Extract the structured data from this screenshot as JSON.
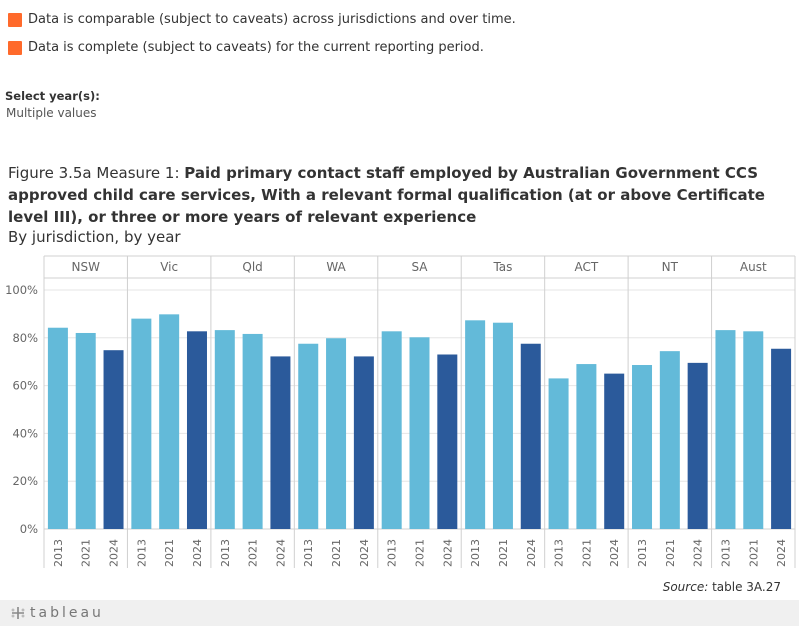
{
  "legend": {
    "items": [
      {
        "label": "Data is comparable (subject to caveats) across jurisdictions and over time.",
        "color": "#FF6A2B"
      },
      {
        "label": "Data is complete (subject to caveats) for the current reporting period.",
        "color": "#FF6A2B"
      }
    ]
  },
  "filter": {
    "label": "Select year(s):",
    "value": "Multiple values"
  },
  "figure": {
    "title_prefix": "Figure 3.5a Measure 1: ",
    "title_bold": "Paid primary contact staff employed by Australian Government CCS approved child care services, With a relevant formal qualification (at or above Certificate level III), or three or more years of relevant experience",
    "subtitle": "By jurisdiction, by year"
  },
  "source": {
    "label": "Source:",
    "text": " table 3A.27"
  },
  "footer": {
    "logo_text": "tableau",
    "logo_icon": "tableau-cross-icon"
  },
  "colors": {
    "light_bar": "#63BAD9",
    "dark_bar": "#2B5A9B",
    "grid": "#e6e6e6",
    "axis_text": "#666666"
  },
  "chart_data": {
    "type": "bar",
    "panels": [
      "NSW",
      "Vic",
      "Qld",
      "WA",
      "SA",
      "Tas",
      "ACT",
      "NT",
      "Aust"
    ],
    "years": [
      "2013",
      "2021",
      "2024"
    ],
    "values": [
      [
        84.2,
        82.0,
        74.8
      ],
      [
        88.0,
        89.8,
        82.7
      ],
      [
        83.2,
        81.6,
        72.2
      ],
      [
        77.5,
        79.8,
        72.2
      ],
      [
        82.7,
        80.2,
        73.0
      ],
      [
        87.3,
        86.3,
        77.5
      ],
      [
        63.0,
        69.0,
        65.0
      ],
      [
        68.6,
        74.4,
        69.5
      ],
      [
        83.2,
        82.7,
        75.4
      ]
    ],
    "y_ticks": [
      "0%",
      "20%",
      "40%",
      "60%",
      "80%",
      "100%"
    ],
    "ylim": [
      0,
      105
    ],
    "grid": true
  }
}
